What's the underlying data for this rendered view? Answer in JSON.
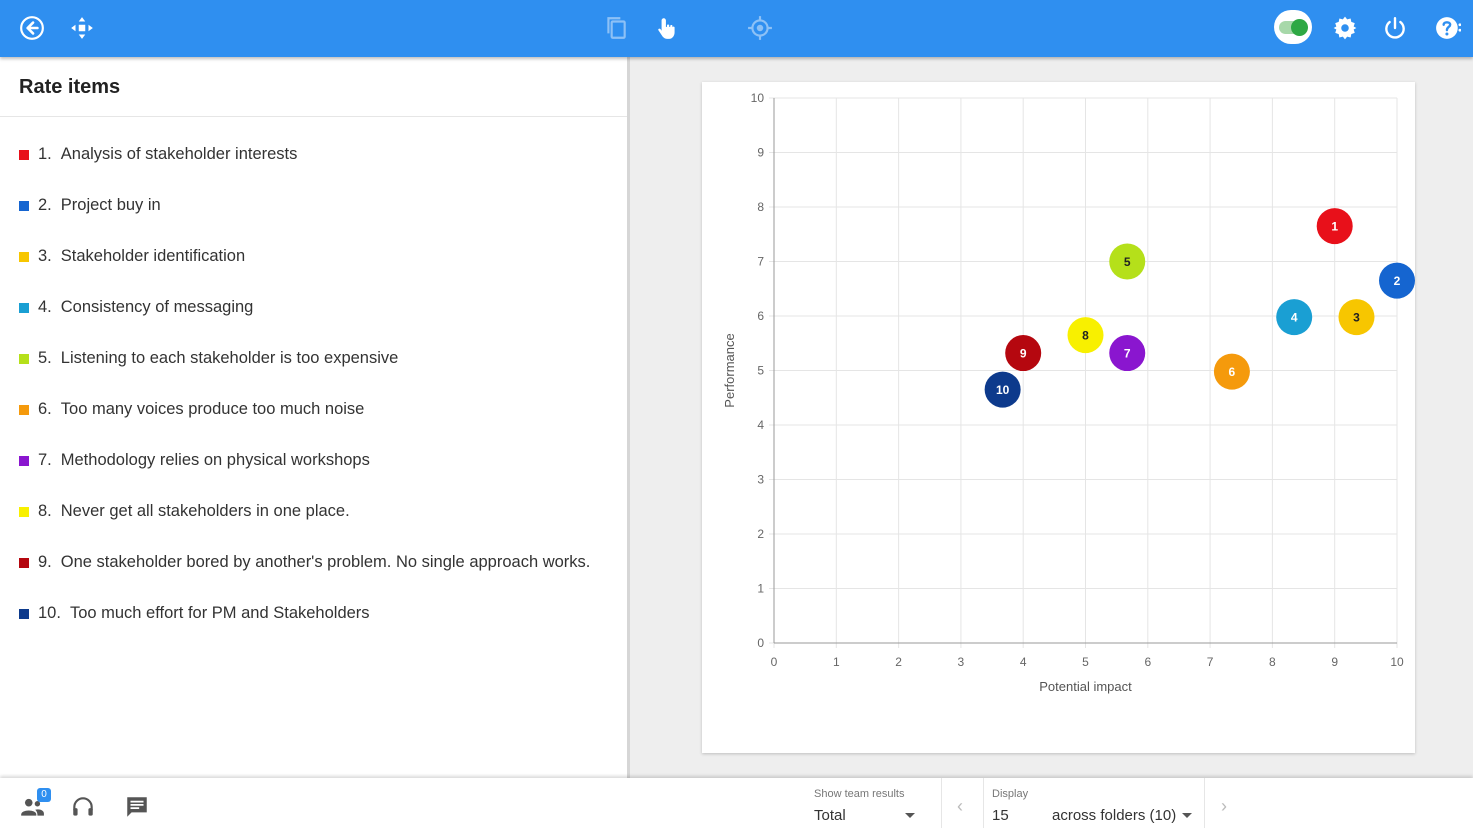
{
  "toolbar": {
    "icons": [
      "back-icon",
      "move-icon",
      "copy-icon",
      "pointer-hand-icon",
      "target-icon",
      "settings-icon",
      "power-icon",
      "help-icon"
    ],
    "accent": "#2f8ff0"
  },
  "panel": {
    "title": "Rate items",
    "items": [
      {
        "num": "1.",
        "label": "Analysis of stakeholder interests",
        "color": "#e8101a"
      },
      {
        "num": "2.",
        "label": "Project buy in",
        "color": "#1565d0"
      },
      {
        "num": "3.",
        "label": "Stakeholder identification",
        "color": "#f7c600"
      },
      {
        "num": "4.",
        "label": "Consistency of messaging",
        "color": "#1a9fd3"
      },
      {
        "num": "5.",
        "label": "Listening to each stakeholder is too expensive",
        "color": "#b5e01a"
      },
      {
        "num": "6.",
        "label": "Too many voices produce too much noise",
        "color": "#f59a0c"
      },
      {
        "num": "7.",
        "label": "Methodology relies on physical workshops",
        "color": "#8a16cf"
      },
      {
        "num": "8.",
        "label": "Never get all stakeholders in one place.",
        "color": "#f8f000"
      },
      {
        "num": "9.",
        "label": "One stakeholder bored by another's problem. No single approach works.",
        "color": "#b5070f"
      },
      {
        "num": "10.",
        "label": "Too much effort for PM and Stakeholders",
        "color": "#0d3a8c"
      }
    ]
  },
  "chart_data": {
    "type": "scatter",
    "xlabel": "Potential impact",
    "ylabel": "Performance",
    "xlim": [
      0,
      10
    ],
    "ylim": [
      0,
      10
    ],
    "grid": true,
    "xticks": [
      "0",
      "1",
      "2",
      "3",
      "4",
      "5",
      "6",
      "7",
      "8",
      "9",
      "10"
    ],
    "yticks": [
      "0",
      "1",
      "2",
      "3",
      "4",
      "5",
      "6",
      "7",
      "8",
      "9",
      "10"
    ],
    "points": [
      {
        "label": "1",
        "x": 9.0,
        "y": 7.65,
        "color": "#e8101a"
      },
      {
        "label": "2",
        "x": 10.0,
        "y": 6.65,
        "color": "#1565d0"
      },
      {
        "label": "3",
        "x": 9.35,
        "y": 5.98,
        "color": "#f7c600"
      },
      {
        "label": "4",
        "x": 8.35,
        "y": 5.98,
        "color": "#1a9fd3"
      },
      {
        "label": "5",
        "x": 5.67,
        "y": 7.0,
        "color": "#b5e01a"
      },
      {
        "label": "6",
        "x": 7.35,
        "y": 4.98,
        "color": "#f59a0c"
      },
      {
        "label": "7",
        "x": 5.67,
        "y": 5.32,
        "color": "#8a16cf"
      },
      {
        "label": "8",
        "x": 5.0,
        "y": 5.65,
        "color": "#f8f000"
      },
      {
        "label": "9",
        "x": 4.0,
        "y": 5.32,
        "color": "#b5070f"
      },
      {
        "label": "10",
        "x": 3.67,
        "y": 4.65,
        "color": "#0d3a8c"
      }
    ]
  },
  "footer": {
    "badge_count": "0",
    "show_team_label": "Show team results",
    "show_team_value": "Total",
    "display_label": "Display",
    "display_value": "15",
    "folders_value": "across folders (10)"
  }
}
